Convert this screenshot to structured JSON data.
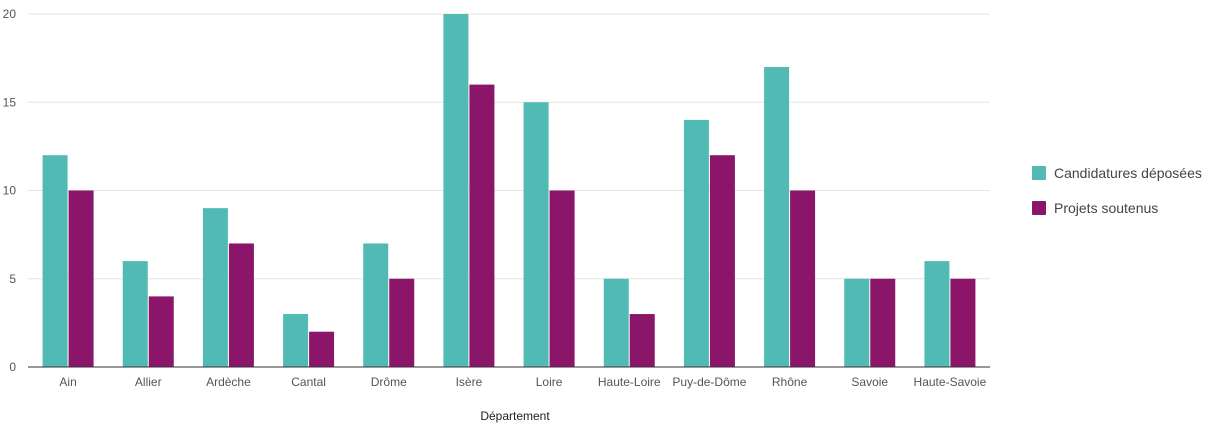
{
  "chart_data": {
    "type": "bar",
    "categories": [
      "Ain",
      "Allier",
      "Ardèche",
      "Cantal",
      "Drôme",
      "Isère",
      "Loire",
      "Haute-Loire",
      "Puy-de-Dôme",
      "Rhône",
      "Savoie",
      "Haute-Savoie"
    ],
    "series": [
      {
        "name": "Candidatures déposées",
        "color": "#52BAB5",
        "values": [
          12,
          6,
          9,
          3,
          7,
          20,
          15,
          5,
          14,
          17,
          5,
          6
        ]
      },
      {
        "name": "Projets soutenus",
        "color": "#8B1669",
        "values": [
          10,
          4,
          7,
          2,
          5,
          16,
          10,
          3,
          12,
          10,
          5,
          5
        ]
      }
    ],
    "xlabel": "Département",
    "ylabel": "",
    "ylim": [
      0,
      20
    ],
    "yticks": [
      0,
      5,
      10,
      15,
      20
    ],
    "grid": true,
    "legend_position": "right"
  }
}
